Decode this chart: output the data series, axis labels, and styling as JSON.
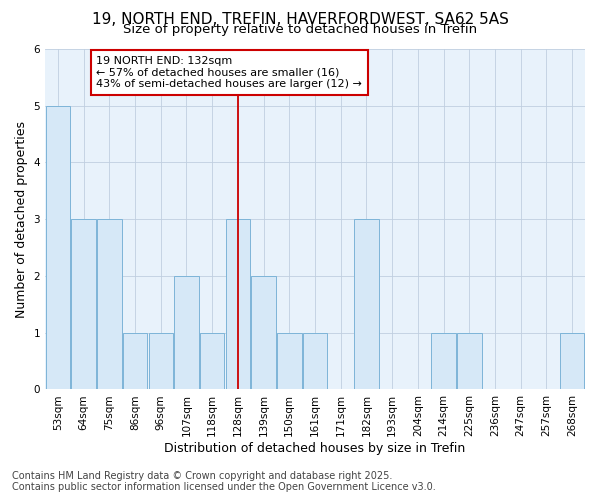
{
  "title": "19, NORTH END, TREFIN, HAVERFORDWEST, SA62 5AS",
  "subtitle": "Size of property relative to detached houses in Trefin",
  "xlabel": "Distribution of detached houses by size in Trefin",
  "ylabel": "Number of detached properties",
  "categories": [
    "53sqm",
    "64sqm",
    "75sqm",
    "86sqm",
    "96sqm",
    "107sqm",
    "118sqm",
    "128sqm",
    "139sqm",
    "150sqm",
    "161sqm",
    "171sqm",
    "182sqm",
    "193sqm",
    "204sqm",
    "214sqm",
    "225sqm",
    "236sqm",
    "247sqm",
    "257sqm",
    "268sqm"
  ],
  "values": [
    5,
    3,
    3,
    1,
    1,
    2,
    1,
    3,
    2,
    1,
    1,
    0,
    3,
    0,
    0,
    1,
    1,
    0,
    0,
    0,
    1
  ],
  "bar_color": "#d6e8f7",
  "bar_edge_color": "#7db4d8",
  "highlight_index": 7,
  "highlight_line_color": "#cc0000",
  "ylim": [
    0,
    6
  ],
  "yticks": [
    0,
    1,
    2,
    3,
    4,
    5,
    6
  ],
  "annotation_text": "19 NORTH END: 132sqm\n← 57% of detached houses are smaller (16)\n43% of semi-detached houses are larger (12) →",
  "annotation_box_color": "#ffffff",
  "annotation_box_edge_color": "#cc0000",
  "footer_text": "Contains HM Land Registry data © Crown copyright and database right 2025.\nContains public sector information licensed under the Open Government Licence v3.0.",
  "figure_bg": "#ffffff",
  "plot_bg": "#e8f2fb",
  "title_fontsize": 11,
  "subtitle_fontsize": 9.5,
  "label_fontsize": 9,
  "tick_fontsize": 7.5,
  "footer_fontsize": 7,
  "annot_fontsize": 8
}
